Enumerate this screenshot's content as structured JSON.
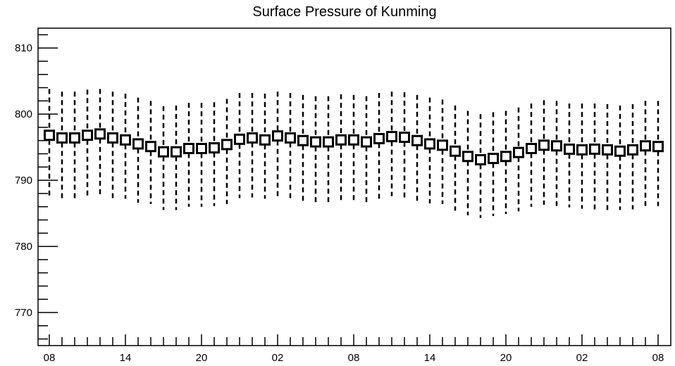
{
  "chart_data": {
    "type": "line",
    "title": "Surface Pressure of Kunming",
    "xlabel": "",
    "ylabel": "",
    "ylim": [
      765,
      813
    ],
    "y_ticks": [
      770,
      780,
      790,
      800,
      810
    ],
    "x_tick_labels": [
      "08",
      "14",
      "20",
      "02",
      "08",
      "14",
      "20",
      "02",
      "08"
    ],
    "x_tick_positions": [
      0,
      6,
      12,
      18,
      24,
      30,
      36,
      42,
      48
    ],
    "x_step_hours": 1,
    "x": [
      0,
      1,
      2,
      3,
      4,
      5,
      6,
      7,
      8,
      9,
      10,
      11,
      12,
      13,
      14,
      15,
      16,
      17,
      18,
      19,
      20,
      21,
      22,
      23,
      24,
      25,
      26,
      27,
      28,
      29,
      30,
      31,
      32,
      33,
      34,
      35,
      36,
      37,
      38,
      39,
      40,
      41,
      42,
      43,
      44,
      45,
      46,
      47,
      48
    ],
    "series": [
      {
        "values": [
          796.8,
          796.4,
          796.4,
          796.8,
          797.0,
          796.4,
          796.1,
          795.5,
          795.1,
          794.3,
          794.3,
          794.8,
          794.8,
          794.9,
          795.4,
          796.2,
          796.4,
          796.1,
          796.7,
          796.4,
          796.0,
          795.8,
          795.8,
          796.1,
          796.1,
          795.8,
          796.3,
          796.6,
          796.5,
          796.0,
          795.5,
          795.3,
          794.4,
          793.6,
          793.1,
          793.3,
          793.6,
          794.2,
          794.8,
          795.3,
          795.2,
          794.7,
          794.6,
          794.7,
          794.6,
          794.4,
          794.6,
          795.2,
          795.1
        ],
        "upper": [
          803.8,
          803.4,
          803.4,
          803.7,
          803.8,
          803.4,
          803.1,
          802.5,
          802.0,
          801.2,
          801.3,
          801.7,
          801.7,
          801.8,
          802.3,
          803.2,
          803.2,
          803.1,
          803.4,
          803.2,
          802.9,
          802.7,
          802.7,
          803.0,
          802.9,
          802.7,
          803.2,
          803.4,
          803.3,
          802.9,
          802.5,
          802.2,
          801.3,
          800.5,
          800.0,
          800.3,
          800.5,
          801.0,
          801.6,
          802.1,
          802.0,
          801.6,
          801.6,
          801.6,
          801.5,
          801.3,
          801.5,
          802.0,
          802.0
        ],
        "lower": [
          787.5,
          787.3,
          787.3,
          787.6,
          787.8,
          787.3,
          787.2,
          786.6,
          786.4,
          785.5,
          785.5,
          786.0,
          786.0,
          786.1,
          786.4,
          787.3,
          787.4,
          787.2,
          787.4,
          787.3,
          786.9,
          786.7,
          786.6,
          786.9,
          786.8,
          786.7,
          787.2,
          787.6,
          787.4,
          786.9,
          786.5,
          786.4,
          785.4,
          784.7,
          784.3,
          784.6,
          784.9,
          785.3,
          786.0,
          786.3,
          786.1,
          785.9,
          785.7,
          785.6,
          785.5,
          785.5,
          785.6,
          785.9,
          786.1
        ]
      }
    ],
    "grid": false,
    "legend": "none"
  }
}
